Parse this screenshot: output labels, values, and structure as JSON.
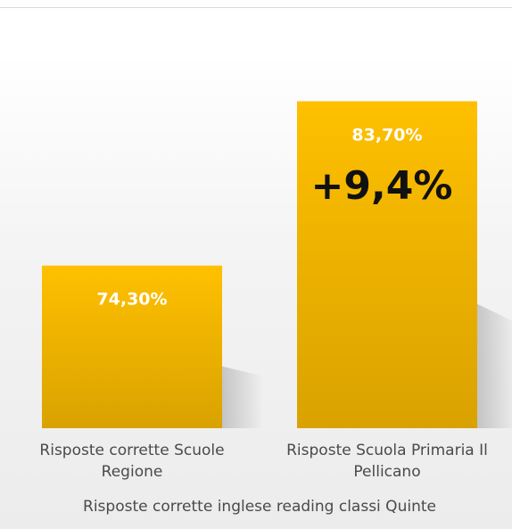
{
  "chart_data": {
    "type": "bar",
    "categories": [
      "Risposte corrette Scuole Regione",
      "Risposte Scuola Primaria Il Pellicano"
    ],
    "category_lines": [
      [
        "Risposte corrette Scuole",
        "Regione"
      ],
      [
        "Risposte Scuola Primaria Il",
        "Pellicano"
      ]
    ],
    "values": [
      74.3,
      83.7
    ],
    "data_labels": [
      "74,30%",
      "83,70%"
    ],
    "annotation": "+9,4%",
    "xlabel": "Risposte corrette inglese reading classi Quinte",
    "ylabel": "",
    "ylim": [
      65,
      85
    ],
    "grid": false,
    "colors": {
      "bar_top": "#ffc000",
      "bar_bottom": "#d9a200",
      "data_label": "#ffffff",
      "annotation": "#111111",
      "text": "#4a4a4a"
    }
  }
}
